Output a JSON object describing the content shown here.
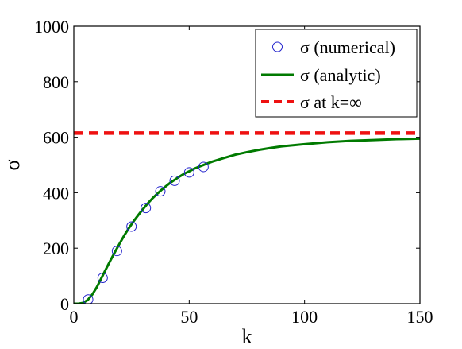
{
  "chart_data": {
    "type": "line",
    "xlabel": "k",
    "ylabel": "σ",
    "xlim": [
      0,
      150
    ],
    "ylim": [
      0,
      1000
    ],
    "xticks": [
      0,
      50,
      100,
      150
    ],
    "yticks": [
      0,
      200,
      400,
      600,
      800,
      1000
    ],
    "grid": false,
    "legend_position": "top-right",
    "series": [
      {
        "name": "σ (numerical)",
        "kind": "markers",
        "marker": "circle",
        "color": "#2222cc",
        "x": [
          6.2,
          12.5,
          18.7,
          25,
          31.2,
          37.5,
          43.7,
          50,
          56.2
        ],
        "y": [
          15,
          93,
          190,
          278,
          345,
          405,
          443,
          473,
          493
        ]
      },
      {
        "name": "σ (analytic)",
        "kind": "line",
        "color": "#007a00",
        "x": [
          0,
          2,
          4,
          6,
          8,
          10,
          12,
          14,
          16,
          18,
          20,
          22,
          24,
          26,
          28,
          30,
          32,
          34,
          36,
          38,
          40,
          42,
          44,
          46,
          48,
          50,
          52,
          55,
          58,
          60,
          65,
          70,
          75,
          80,
          85,
          90,
          95,
          100,
          110,
          120,
          130,
          140,
          150
        ],
        "y": [
          0,
          0,
          3,
          13,
          33,
          60,
          93,
          126,
          158,
          189,
          219,
          248,
          274,
          298,
          320,
          341,
          361,
          379,
          395,
          410,
          424,
          437,
          448,
          459,
          469,
          477,
          486,
          496,
          506,
          512,
          525,
          537,
          546,
          554,
          561,
          567,
          571,
          575,
          582,
          587,
          590,
          593,
          595
        ]
      },
      {
        "name": "σ at k=∞",
        "kind": "line",
        "dash": true,
        "color": "#ee1111",
        "x": [
          0,
          150
        ],
        "y": [
          615,
          615
        ]
      }
    ]
  }
}
